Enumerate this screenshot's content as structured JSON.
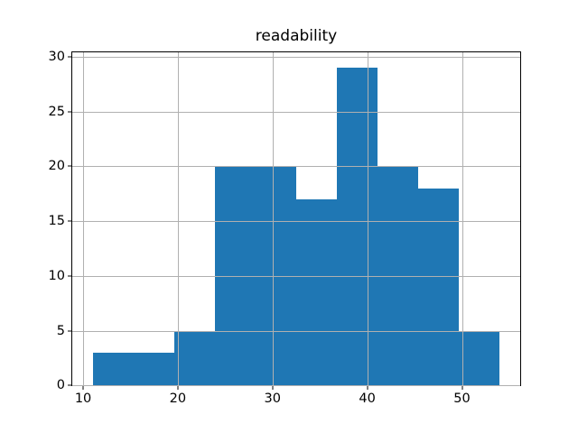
{
  "chart_data": {
    "type": "histogram",
    "title": "readability",
    "xlabel": "",
    "ylabel": "",
    "bin_edges": [
      11.0,
      15.3,
      19.6,
      23.9,
      28.2,
      32.5,
      36.8,
      41.1,
      45.4,
      49.7,
      54.0
    ],
    "counts": [
      3,
      3,
      5,
      20,
      20,
      17,
      29,
      20,
      18,
      5
    ],
    "x_ticks": [
      10,
      20,
      30,
      40,
      50
    ],
    "y_ticks": [
      0,
      5,
      10,
      15,
      20,
      25,
      30
    ],
    "xlim": [
      8.85,
      56.15
    ],
    "ylim": [
      0,
      30.45
    ],
    "grid": true,
    "grid_above_bars": true,
    "legend": false,
    "bar_color": "#1f77b4",
    "grid_color": "#b0b0b0",
    "spine_color": "#000000",
    "tick_color": "#000000",
    "text_color": "#000000",
    "background_color": "#ffffff"
  }
}
